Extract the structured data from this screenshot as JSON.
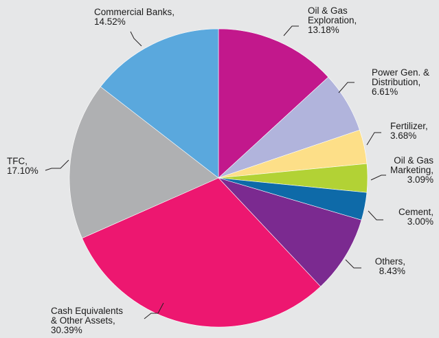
{
  "chart_data": {
    "type": "pie",
    "title": "",
    "slices": [
      {
        "name": "Oil & Gas Exploration",
        "value": 13.18,
        "label_lines": [
          "Oil & Gas",
          "Exploration,",
          "13.18%"
        ],
        "color": "#c2188c"
      },
      {
        "name": "Power Gen. & Distribution",
        "value": 6.61,
        "label_lines": [
          "Power Gen. &",
          "Distribution,",
          "6.61%"
        ],
        "color": "#b1b4dc"
      },
      {
        "name": "Fertilizer",
        "value": 3.68,
        "label_lines": [
          "Fertilizer,",
          "3.68%"
        ],
        "color": "#fddf88"
      },
      {
        "name": "Oil & Gas Marketing",
        "value": 3.09,
        "label_lines": [
          "Oil & Gas",
          "Marketing,",
          "3.09%"
        ],
        "color": "#b2d235"
      },
      {
        "name": "Cement",
        "value": 3.0,
        "label_lines": [
          "Cement,",
          "3.00%"
        ],
        "color": "#0e6aa8"
      },
      {
        "name": "Others",
        "value": 8.43,
        "label_lines": [
          "Others,",
          "8.43%"
        ],
        "color": "#7b2a90"
      },
      {
        "name": "Cash Equivalents & Other Assets",
        "value": 30.39,
        "label_lines": [
          "Cash Equivalents",
          "& Other Assets,",
          "30.39%"
        ],
        "color": "#ed1770"
      },
      {
        "name": "TFC",
        "value": 17.1,
        "label_lines": [
          "TFC,",
          "17.10%"
        ],
        "color": "#afb0b2"
      },
      {
        "name": "Commercial Banks",
        "value": 14.52,
        "label_lines": [
          "Commercial Banks,",
          "14.52%"
        ],
        "color": "#5aa8dd"
      }
    ],
    "start_angle_deg": 0,
    "direction": "clockwise",
    "legend": "none",
    "labels": "outside-with-leader-lines"
  }
}
